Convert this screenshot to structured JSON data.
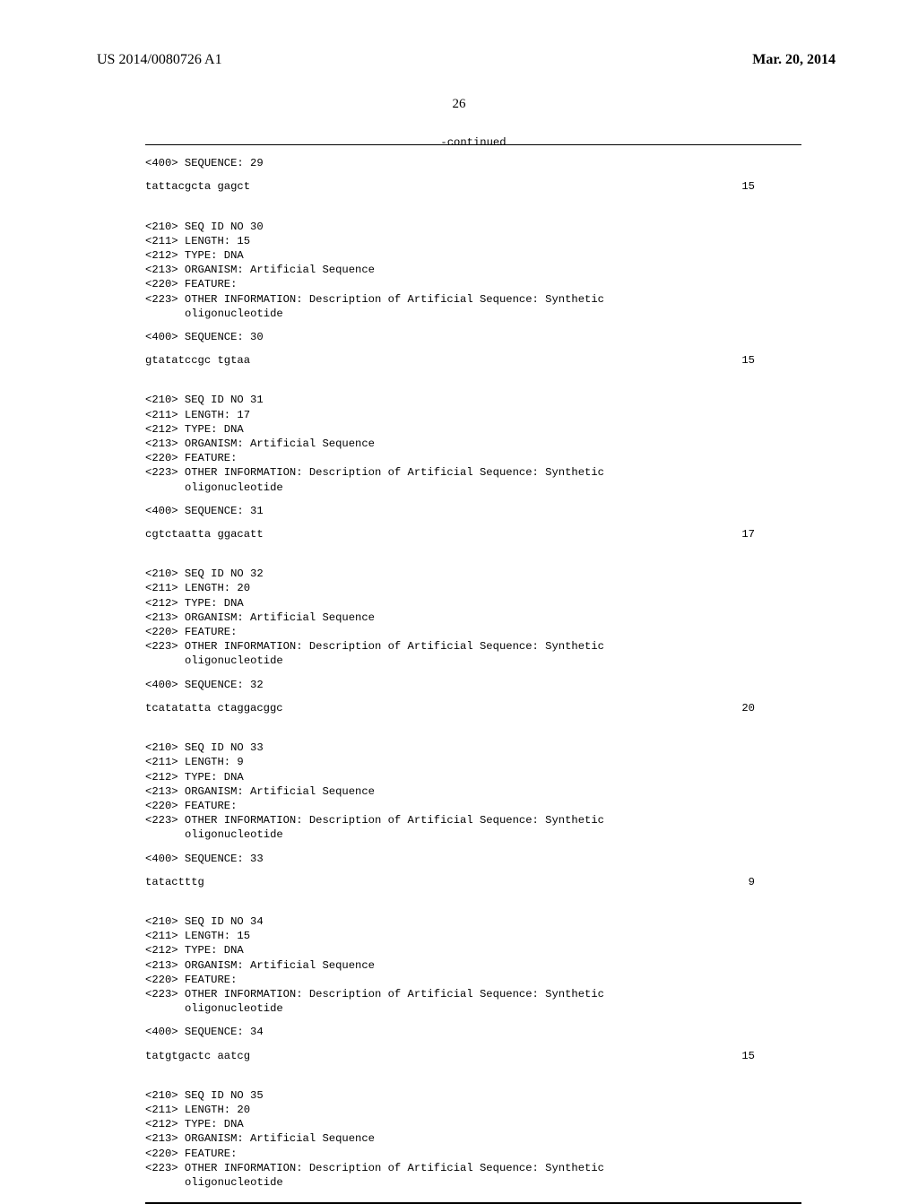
{
  "header": {
    "publication_number": "US 2014/0080726 A1",
    "publication_date": "Mar. 20, 2014"
  },
  "page_number": "26",
  "continued_label": "-continued",
  "sequences": [
    {
      "header_tag": "<400> SEQUENCE: 29",
      "sequence": "tattacgcta gagct",
      "length_value": "15"
    },
    {
      "meta": [
        "<210> SEQ ID NO 30",
        "<211> LENGTH: 15",
        "<212> TYPE: DNA",
        "<213> ORGANISM: Artificial Sequence",
        "<220> FEATURE:",
        "<223> OTHER INFORMATION: Description of Artificial Sequence: Synthetic"
      ],
      "meta_indent": "oligonucleotide",
      "header_tag": "<400> SEQUENCE: 30",
      "sequence": "gtatatccgc tgtaa",
      "length_value": "15"
    },
    {
      "meta": [
        "<210> SEQ ID NO 31",
        "<211> LENGTH: 17",
        "<212> TYPE: DNA",
        "<213> ORGANISM: Artificial Sequence",
        "<220> FEATURE:",
        "<223> OTHER INFORMATION: Description of Artificial Sequence: Synthetic"
      ],
      "meta_indent": "oligonucleotide",
      "header_tag": "<400> SEQUENCE: 31",
      "sequence": "cgtctaatta ggacatt",
      "length_value": "17"
    },
    {
      "meta": [
        "<210> SEQ ID NO 32",
        "<211> LENGTH: 20",
        "<212> TYPE: DNA",
        "<213> ORGANISM: Artificial Sequence",
        "<220> FEATURE:",
        "<223> OTHER INFORMATION: Description of Artificial Sequence: Synthetic"
      ],
      "meta_indent": "oligonucleotide",
      "header_tag": "<400> SEQUENCE: 32",
      "sequence": "tcatatatta ctaggacggc",
      "length_value": "20"
    },
    {
      "meta": [
        "<210> SEQ ID NO 33",
        "<211> LENGTH: 9",
        "<212> TYPE: DNA",
        "<213> ORGANISM: Artificial Sequence",
        "<220> FEATURE:",
        "<223> OTHER INFORMATION: Description of Artificial Sequence: Synthetic"
      ],
      "meta_indent": "oligonucleotide",
      "header_tag": "<400> SEQUENCE: 33",
      "sequence": "tatactttg",
      "length_value": "9"
    },
    {
      "meta": [
        "<210> SEQ ID NO 34",
        "<211> LENGTH: 15",
        "<212> TYPE: DNA",
        "<213> ORGANISM: Artificial Sequence",
        "<220> FEATURE:",
        "<223> OTHER INFORMATION: Description of Artificial Sequence: Synthetic"
      ],
      "meta_indent": "oligonucleotide",
      "header_tag": "<400> SEQUENCE: 34",
      "sequence": "tatgtgactc aatcg",
      "length_value": "15"
    },
    {
      "meta": [
        "<210> SEQ ID NO 35",
        "<211> LENGTH: 20",
        "<212> TYPE: DNA",
        "<213> ORGANISM: Artificial Sequence",
        "<220> FEATURE:",
        "<223> OTHER INFORMATION: Description of Artificial Sequence: Synthetic"
      ],
      "meta_indent": "oligonucleotide"
    }
  ]
}
